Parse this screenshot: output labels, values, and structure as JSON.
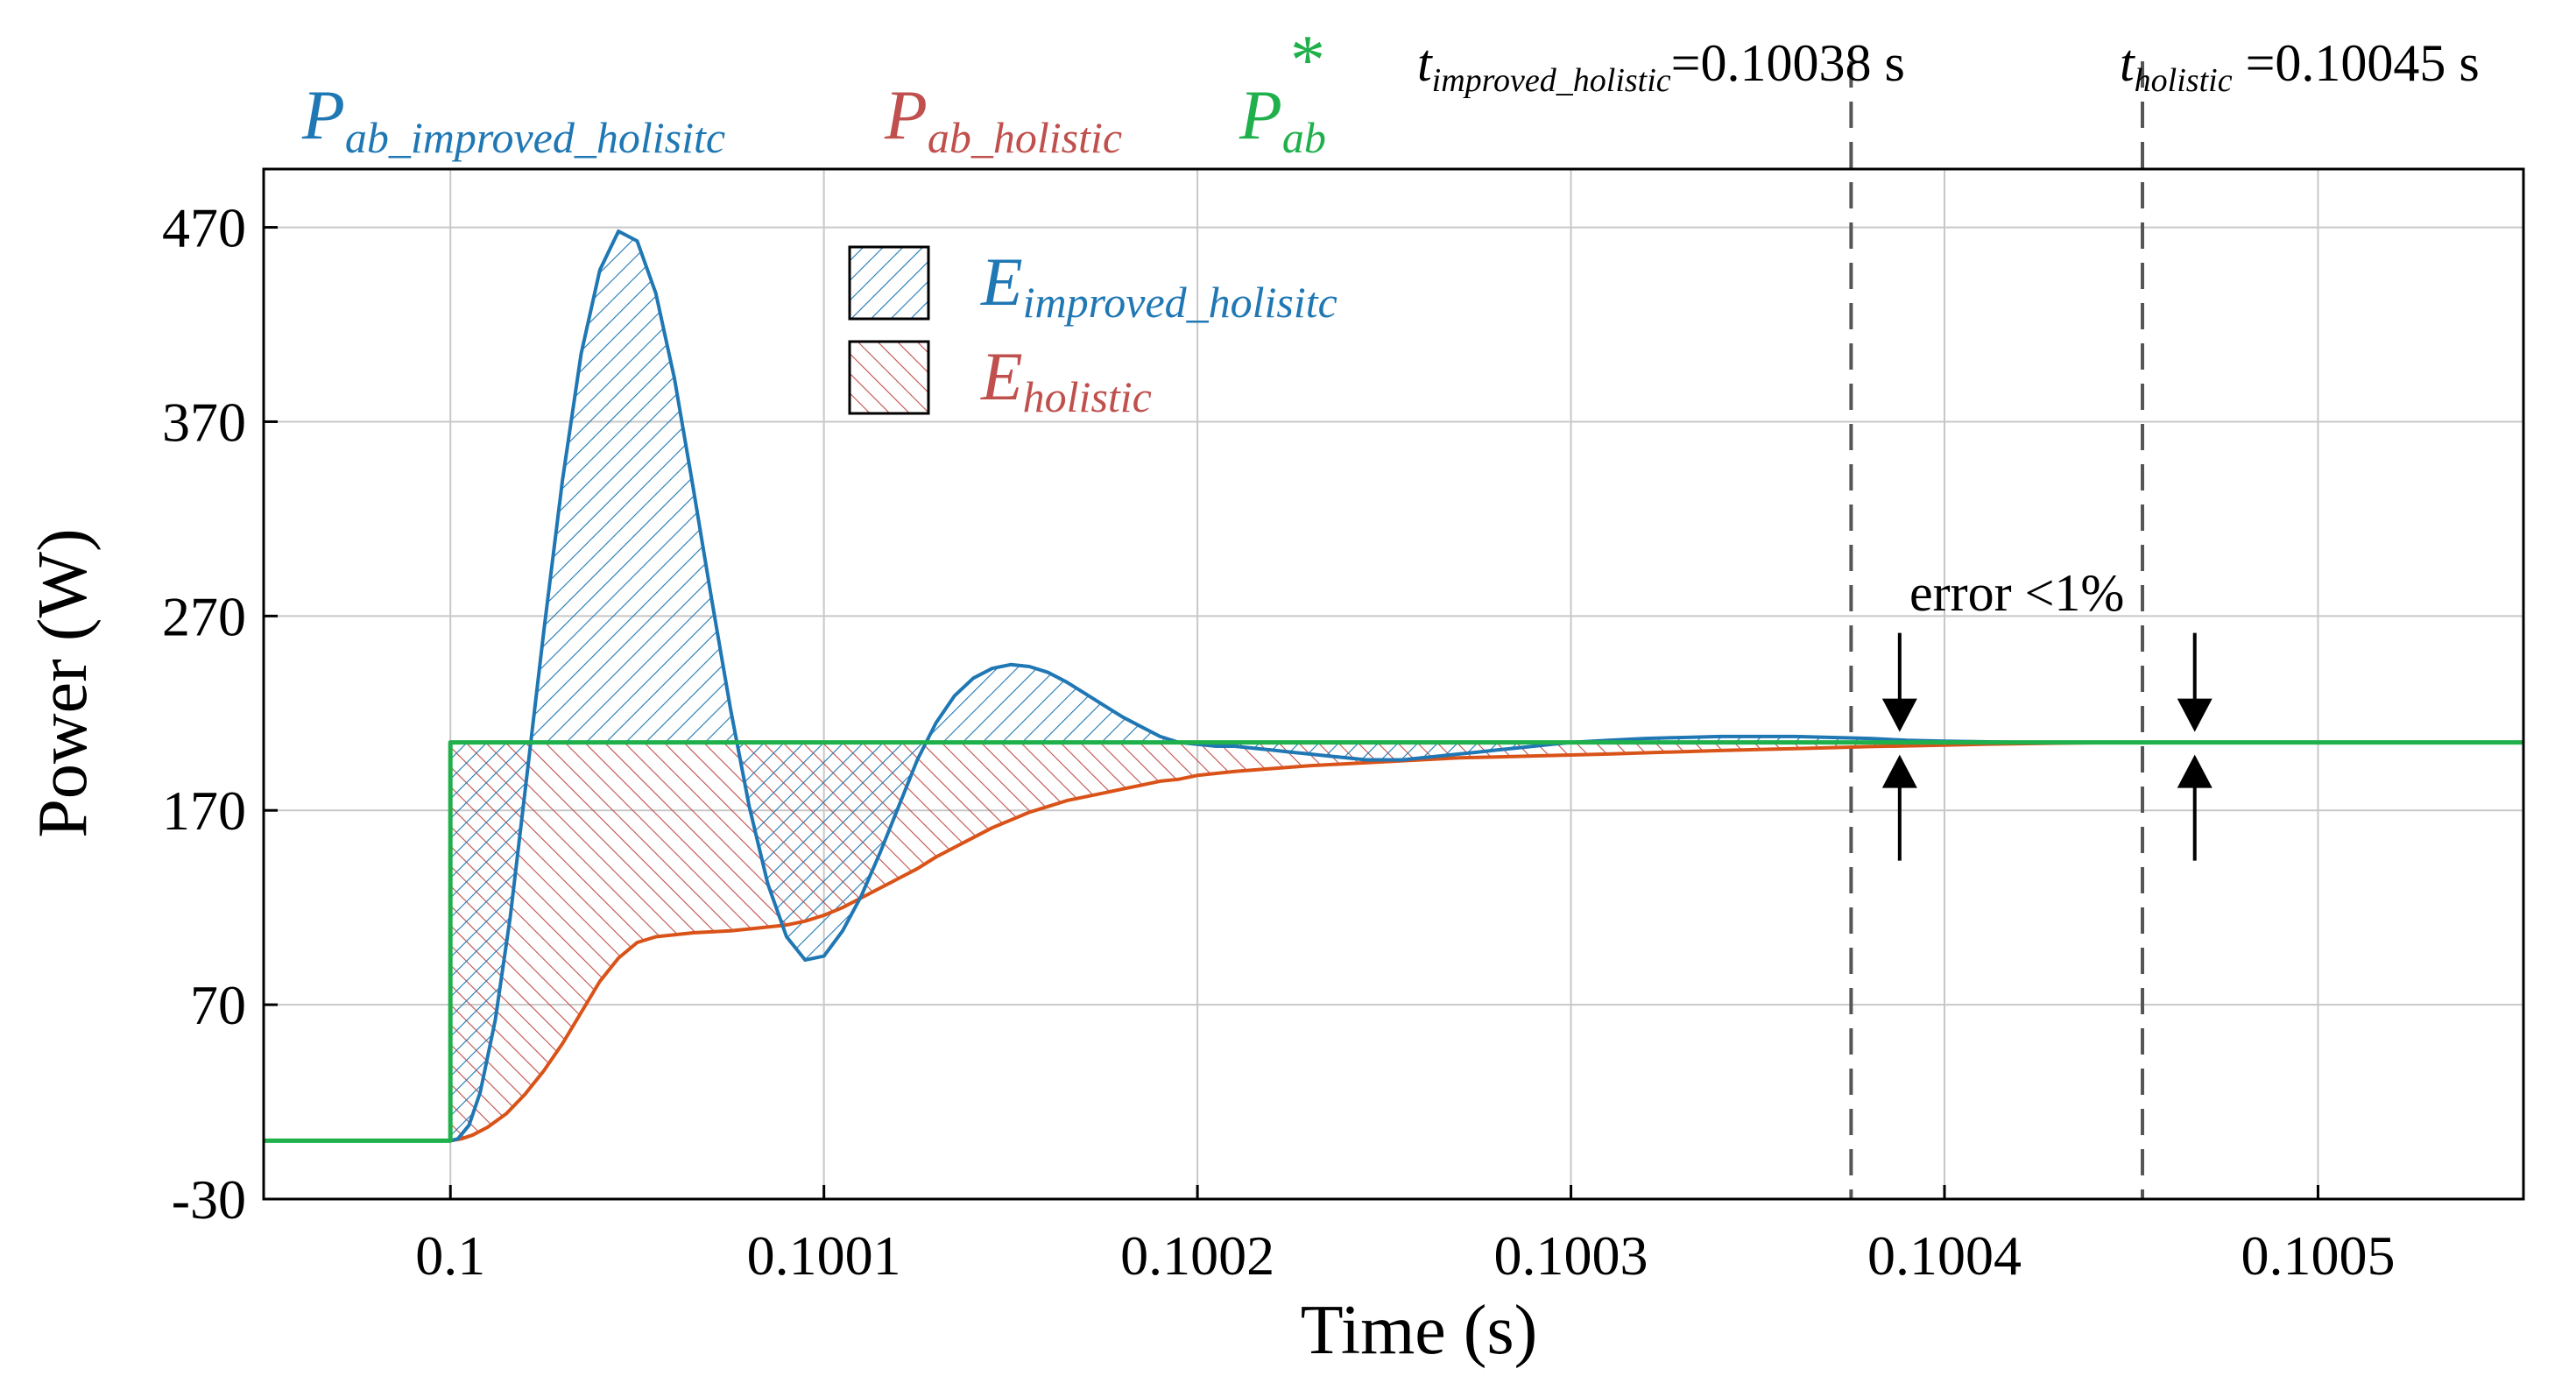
{
  "chart_data": {
    "type": "line",
    "xlabel": "Time (s)",
    "ylabel": "Power (W)",
    "xlim": [
      0.09995,
      0.100555
    ],
    "ylim": [
      -30,
      500
    ],
    "xticks": [
      0.1,
      0.1001,
      0.1002,
      0.1003,
      0.1004,
      0.1005
    ],
    "xtick_labels": [
      "0.1",
      "0.1001",
      "0.1002",
      "0.1003",
      "0.1004",
      "0.1005"
    ],
    "yticks": [
      -30,
      70,
      170,
      270,
      370,
      470
    ],
    "ytick_labels": [
      "-30",
      "70",
      "170",
      "270",
      "370",
      "470"
    ],
    "grid": true,
    "series": [
      {
        "name": "P_ab_improved_holisitc",
        "color": "#1f77b4",
        "x": [
          0.09995,
          0.1,
          0.100002,
          0.100005,
          0.100008,
          0.100012,
          0.100016,
          0.10002,
          0.100025,
          0.10003,
          0.100035,
          0.10004,
          0.100045,
          0.10005,
          0.100055,
          0.10006,
          0.100065,
          0.10007,
          0.100075,
          0.10008,
          0.100085,
          0.10009,
          0.100095,
          0.1001,
          0.100105,
          0.10011,
          0.100115,
          0.10012,
          0.100125,
          0.10013,
          0.100135,
          0.10014,
          0.100145,
          0.10015,
          0.100155,
          0.10016,
          0.100165,
          0.10017,
          0.100175,
          0.10018,
          0.100185,
          0.10019,
          0.100195,
          0.1002,
          0.100205,
          0.10021,
          0.100215,
          0.10022,
          0.100225,
          0.10023,
          0.100235,
          0.10024,
          0.100245,
          0.10025,
          0.100255,
          0.10026,
          0.100265,
          0.10027,
          0.100275,
          0.10028,
          0.100285,
          0.10029,
          0.100295,
          0.1003,
          0.10031,
          0.10032,
          0.10033,
          0.10034,
          0.10035,
          0.10036,
          0.10037,
          0.10038,
          0.10039,
          0.1004,
          0.10041,
          0.10042,
          0.10043,
          0.10044,
          0.10045,
          0.10046,
          0.10048,
          0.1005,
          0.100555
        ],
        "values": [
          0,
          0,
          1,
          8,
          25,
          62,
          115,
          180,
          262,
          340,
          405,
          448,
          468,
          463,
          436,
          392,
          336,
          278,
          222,
          172,
          132,
          105,
          93,
          95,
          108,
          126,
          148,
          172,
          196,
          215,
          229,
          238,
          243,
          245,
          244,
          241,
          236,
          230,
          224,
          218,
          213,
          208,
          205,
          204,
          203,
          203,
          202,
          201,
          200,
          199,
          198,
          197,
          196,
          196,
          196,
          197,
          198,
          199,
          200,
          201,
          202,
          203,
          204,
          205,
          206,
          207,
          207.5,
          208,
          208,
          208,
          207.5,
          207,
          206,
          205.6,
          205.3,
          205,
          205,
          205,
          205,
          205,
          205,
          205,
          205
        ]
      },
      {
        "name": "P_ab_holistic",
        "color": "#d95319",
        "x": [
          0.09995,
          0.1,
          0.100003,
          0.100006,
          0.10001,
          0.100015,
          0.10002,
          0.100025,
          0.10003,
          0.100035,
          0.10004,
          0.100045,
          0.10005,
          0.100055,
          0.10006,
          0.100065,
          0.10007,
          0.100075,
          0.10008,
          0.100085,
          0.10009,
          0.100095,
          0.1001,
          0.100105,
          0.10011,
          0.100115,
          0.10012,
          0.100125,
          0.10013,
          0.100135,
          0.10014,
          0.100145,
          0.10015,
          0.100155,
          0.10016,
          0.100165,
          0.10017,
          0.100175,
          0.10018,
          0.100185,
          0.10019,
          0.100195,
          0.1002,
          0.10021,
          0.10022,
          0.10023,
          0.10024,
          0.10025,
          0.10026,
          0.10027,
          0.10028,
          0.10029,
          0.1003,
          0.10031,
          0.10032,
          0.10033,
          0.10034,
          0.10035,
          0.10036,
          0.10037,
          0.10038,
          0.10039,
          0.1004,
          0.10041,
          0.10042,
          0.10043,
          0.10044,
          0.10045,
          0.10046,
          0.10048,
          0.1005,
          0.100555
        ],
        "values": [
          0,
          0,
          1,
          3,
          7,
          14,
          24,
          36,
          50,
          66,
          82,
          94,
          102,
          105,
          106,
          107,
          107.5,
          108,
          109,
          110,
          111,
          113,
          116,
          120,
          125,
          130,
          135,
          140,
          146,
          151,
          156,
          161,
          165,
          169,
          172,
          175,
          177,
          179,
          181,
          183,
          185,
          186,
          188,
          190,
          191.5,
          193,
          194,
          195,
          196,
          197,
          197.5,
          198,
          198.5,
          199,
          199.6,
          200.2,
          200.8,
          201.3,
          201.8,
          202.3,
          202.8,
          203.2,
          203.6,
          204,
          204.3,
          204.6,
          204.8,
          204.9,
          205,
          205,
          205,
          205
        ]
      },
      {
        "name": "P_ab*",
        "color": "#1fb04b",
        "x": [
          0.09995,
          0.1,
          0.1,
          0.100555
        ],
        "values": [
          0,
          0,
          205,
          205
        ]
      }
    ],
    "legend": {
      "top_labels": [
        {
          "base": "P",
          "sub": "ab_improved_holisitc",
          "color": "#1f77b4"
        },
        {
          "base": "P",
          "sub": "ab_holistic",
          "color": "#c0504d"
        },
        {
          "base": "P",
          "sub": "ab",
          "sup": "*",
          "color": "#1fb04b"
        }
      ],
      "fill_entries": [
        {
          "base": "E",
          "sub": "improved_holisitc",
          "color": "#1f77b4"
        },
        {
          "base": "E",
          "sub": "holistic",
          "color": "#c0504d"
        }
      ]
    },
    "annotations": {
      "vlines": [
        {
          "x": 0.100375,
          "label_base": "t",
          "label_sub": "improved_holistic",
          "label_value": "=0.10038 s"
        },
        {
          "x": 0.100453,
          "label_base": "t",
          "label_sub": "holistic",
          "label_value": " =0.10045 s"
        }
      ],
      "error_text": "error <1%",
      "arrow_x": [
        0.100388,
        0.100467
      ],
      "arrow_level": 205
    }
  }
}
